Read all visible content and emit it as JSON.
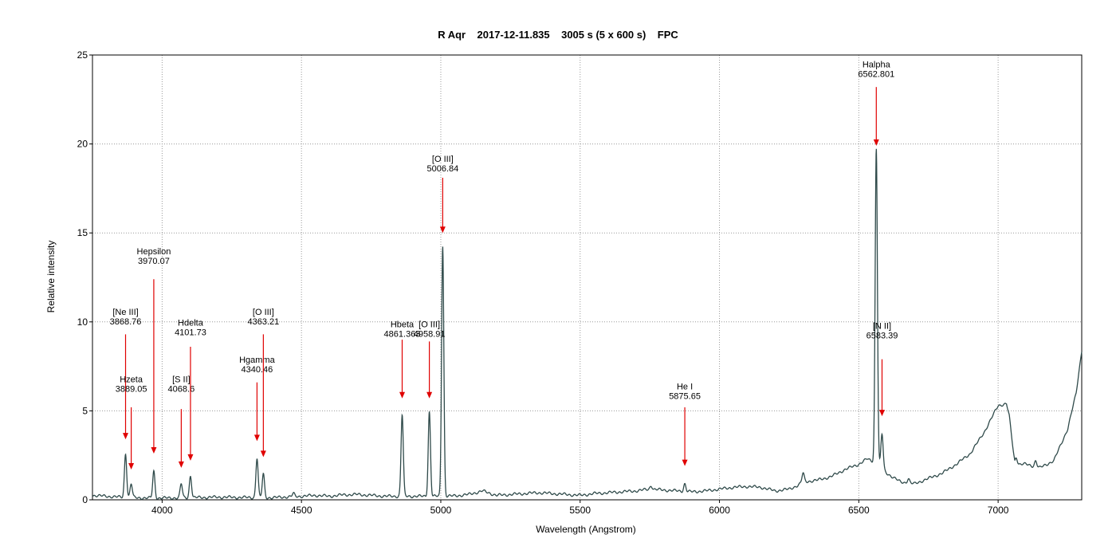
{
  "chart_data": {
    "type": "line",
    "title": "R Aqr    2017-12-11.835    3005 s (5 x 600 s)    FPC",
    "xlabel": "Wavelength (Angstrom)",
    "ylabel": "Relative intensity",
    "xlim": [
      3750,
      7300
    ],
    "ylim": [
      0,
      25
    ],
    "xticks": [
      4000,
      4500,
      5000,
      5500,
      6000,
      6500,
      7000
    ],
    "yticks": [
      0,
      5,
      10,
      15,
      20,
      25
    ],
    "grid": true,
    "line_color": "#2f4a4a",
    "arrow_color": "#e00000",
    "continuum": [
      [
        3750,
        0.25
      ],
      [
        3800,
        0.2
      ],
      [
        3850,
        0.15
      ],
      [
        3900,
        0.12
      ],
      [
        3950,
        0.1
      ],
      [
        4000,
        0.1
      ],
      [
        4100,
        0.12
      ],
      [
        4200,
        0.15
      ],
      [
        4300,
        0.13
      ],
      [
        4400,
        0.12
      ],
      [
        4450,
        0.17
      ],
      [
        4500,
        0.2
      ],
      [
        4550,
        0.25
      ],
      [
        4600,
        0.2
      ],
      [
        4650,
        0.28
      ],
      [
        4700,
        0.3
      ],
      [
        4750,
        0.25
      ],
      [
        4800,
        0.2
      ],
      [
        4900,
        0.2
      ],
      [
        5000,
        0.2
      ],
      [
        5050,
        0.22
      ],
      [
        5100,
        0.3
      ],
      [
        5150,
        0.5
      ],
      [
        5200,
        0.25
      ],
      [
        5250,
        0.3
      ],
      [
        5300,
        0.35
      ],
      [
        5350,
        0.4
      ],
      [
        5400,
        0.35
      ],
      [
        5450,
        0.3
      ],
      [
        5500,
        0.25
      ],
      [
        5550,
        0.35
      ],
      [
        5600,
        0.4
      ],
      [
        5650,
        0.45
      ],
      [
        5700,
        0.5
      ],
      [
        5750,
        0.6
      ],
      [
        5800,
        0.55
      ],
      [
        5850,
        0.5
      ],
      [
        5900,
        0.45
      ],
      [
        5950,
        0.5
      ],
      [
        6000,
        0.6
      ],
      [
        6050,
        0.7
      ],
      [
        6100,
        0.75
      ],
      [
        6150,
        0.7
      ],
      [
        6200,
        0.5
      ],
      [
        6250,
        0.6
      ],
      [
        6280,
        0.8
      ],
      [
        6300,
        1.0
      ],
      [
        6350,
        1.1
      ],
      [
        6400,
        1.3
      ],
      [
        6450,
        1.7
      ],
      [
        6500,
        2.0
      ],
      [
        6530,
        2.3
      ],
      [
        6560,
        2.1
      ],
      [
        6600,
        1.5
      ],
      [
        6650,
        1.0
      ],
      [
        6700,
        0.9
      ],
      [
        6750,
        1.2
      ],
      [
        6800,
        1.5
      ],
      [
        6850,
        2.0
      ],
      [
        6900,
        2.6
      ],
      [
        6950,
        3.8
      ],
      [
        7000,
        5.3
      ],
      [
        7030,
        5.4
      ],
      [
        7040,
        4.7
      ],
      [
        7060,
        2.0
      ],
      [
        7100,
        2.0
      ],
      [
        7150,
        1.8
      ],
      [
        7200,
        2.2
      ],
      [
        7250,
        4.0
      ],
      [
        7280,
        6.0
      ],
      [
        7300,
        8.4
      ]
    ],
    "lines": [
      {
        "label": "[Ne III]",
        "wavelength": "3868.76",
        "x": 3868.76,
        "peak": 2.6,
        "width": 4
      },
      {
        "label": "Hzeta",
        "wavelength": "3889.05",
        "x": 3889.05,
        "peak": 0.9,
        "width": 4
      },
      {
        "label": "Hepsilon",
        "wavelength": "3970.07",
        "x": 3970.07,
        "peak": 1.6,
        "width": 4
      },
      {
        "label": "[S II]",
        "wavelength": "4068.6",
        "x": 4068.6,
        "peak": 0.9,
        "width": 4
      },
      {
        "label": "Hdelta",
        "wavelength": "4101.73",
        "x": 4101.73,
        "peak": 1.35,
        "width": 4
      },
      {
        "label": "Hgamma",
        "wavelength": "4340.46",
        "x": 4340.46,
        "peak": 2.35,
        "width": 4
      },
      {
        "label": "[O III]",
        "wavelength": "4363.21",
        "x": 4363.21,
        "peak": 1.45,
        "width": 4
      },
      {
        "label": "Hbeta",
        "wavelength": "4861.363",
        "x": 4861.363,
        "peak": 4.8,
        "width": 4
      },
      {
        "label": "[O III]",
        "wavelength": "4958.91",
        "x": 4958.91,
        "peak": 4.95,
        "width": 4
      },
      {
        "label": "[O III]",
        "wavelength": "5006.84",
        "x": 5006.84,
        "peak": 14.3,
        "width": 4
      },
      {
        "label": "He I",
        "wavelength": "5875.65",
        "x": 5875.65,
        "peak": 0.9,
        "width": 4
      },
      {
        "label": "Halpha",
        "wavelength": "6562.801",
        "x": 6562.801,
        "peak": 19.8,
        "width": 4
      },
      {
        "label": "[N II]",
        "wavelength": "6583.39",
        "x": 6583.39,
        "peak": 3.7,
        "width": 4
      }
    ],
    "minor_lines": [
      {
        "x": 5755,
        "peak": 0.8
      },
      {
        "x": 6300,
        "peak": 1.5
      },
      {
        "x": 6364,
        "peak": 1.1
      },
      {
        "x": 4471,
        "peak": 0.35
      },
      {
        "x": 4686,
        "peak": 0.3
      },
      {
        "x": 6678,
        "peak": 1.2
      },
      {
        "x": 7065,
        "peak": 2.4
      },
      {
        "x": 7135,
        "peak": 2.2
      }
    ],
    "annotations": [
      {
        "name": "[Ne III]",
        "wl": "3868.76",
        "text_x": 3868.76,
        "text_y": 10.4,
        "arrow_top": 9.3,
        "arrow_bottom": 3.4
      },
      {
        "name": "Hzeta",
        "wl": "3889.05",
        "text_x": 3889.05,
        "text_y": 6.6,
        "arrow_top": 5.2,
        "arrow_bottom": 1.7
      },
      {
        "name": "Hepsilon",
        "wl": "3970.07",
        "text_x": 3970.07,
        "text_y": 13.8,
        "arrow_top": 12.4,
        "arrow_bottom": 2.6
      },
      {
        "name": "[S II]",
        "wl": "4068.6",
        "text_x": 4068.6,
        "text_y": 6.6,
        "arrow_top": 5.1,
        "arrow_bottom": 1.8
      },
      {
        "name": "Hdelta",
        "wl": "4101.73",
        "text_x": 4101.73,
        "text_y": 9.8,
        "arrow_top": 8.6,
        "arrow_bottom": 2.2
      },
      {
        "name": "Hgamma",
        "wl": "4340.46",
        "text_x": 4340.46,
        "text_y": 7.7,
        "arrow_top": 6.6,
        "arrow_bottom": 3.3
      },
      {
        "name": "[O III]",
        "wl": "4363.21",
        "text_x": 4363.21,
        "text_y": 10.4,
        "arrow_top": 9.3,
        "arrow_bottom": 2.4
      },
      {
        "name": "Hbeta",
        "wl": "4861.363",
        "text_x": 4861.363,
        "text_y": 9.7,
        "arrow_top": 9.0,
        "arrow_bottom": 5.7
      },
      {
        "name": "[O III]",
        "wl": "4958.91",
        "text_x": 4958.91,
        "text_y": 9.7,
        "arrow_top": 8.9,
        "arrow_bottom": 5.7
      },
      {
        "name": "[O III]",
        "wl": "5006.84",
        "text_x": 5006.84,
        "text_y": 19.0,
        "arrow_top": 18.1,
        "arrow_bottom": 15.0
      },
      {
        "name": "He I",
        "wl": "5875.65",
        "text_x": 5875.65,
        "text_y": 6.2,
        "arrow_top": 5.2,
        "arrow_bottom": 1.9
      },
      {
        "name": "Halpha",
        "wl": "6562.801",
        "text_x": 6562.801,
        "text_y": 24.3,
        "arrow_top": 23.2,
        "arrow_bottom": 19.9
      },
      {
        "name": "[N II]",
        "wl": "6583.39",
        "text_x": 6583.39,
        "text_y": 9.6,
        "arrow_top": 7.9,
        "arrow_bottom": 4.7
      }
    ]
  }
}
